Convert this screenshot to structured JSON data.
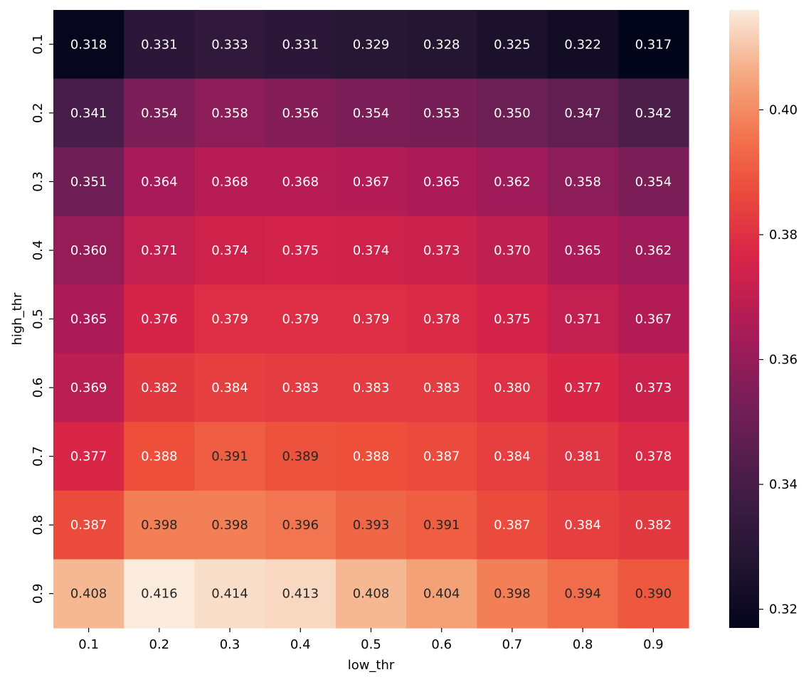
{
  "chart_data": {
    "type": "heatmap",
    "title": "",
    "xlabel": "low_thr",
    "ylabel": "high_thr",
    "x_categories": [
      "0.1",
      "0.2",
      "0.3",
      "0.4",
      "0.5",
      "0.6",
      "0.7",
      "0.8",
      "0.9"
    ],
    "y_categories": [
      "0.1",
      "0.2",
      "0.3",
      "0.4",
      "0.5",
      "0.6",
      "0.7",
      "0.8",
      "0.9"
    ],
    "values": [
      [
        0.318,
        0.331,
        0.333,
        0.331,
        0.329,
        0.328,
        0.325,
        0.322,
        0.317
      ],
      [
        0.341,
        0.354,
        0.358,
        0.356,
        0.354,
        0.353,
        0.35,
        0.347,
        0.342
      ],
      [
        0.351,
        0.364,
        0.368,
        0.368,
        0.367,
        0.365,
        0.362,
        0.358,
        0.354
      ],
      [
        0.36,
        0.371,
        0.374,
        0.375,
        0.374,
        0.373,
        0.37,
        0.365,
        0.362
      ],
      [
        0.365,
        0.376,
        0.379,
        0.379,
        0.379,
        0.378,
        0.375,
        0.371,
        0.367
      ],
      [
        0.369,
        0.382,
        0.384,
        0.383,
        0.383,
        0.383,
        0.38,
        0.377,
        0.373
      ],
      [
        0.377,
        0.388,
        0.391,
        0.389,
        0.388,
        0.387,
        0.384,
        0.381,
        0.378
      ],
      [
        0.387,
        0.398,
        0.398,
        0.396,
        0.393,
        0.391,
        0.387,
        0.384,
        0.382
      ],
      [
        0.408,
        0.416,
        0.414,
        0.413,
        0.408,
        0.404,
        0.398,
        0.394,
        0.39
      ]
    ],
    "annotations": [
      [
        "0.318",
        "0.331",
        "0.333",
        "0.331",
        "0.329",
        "0.328",
        "0.325",
        "0.322",
        "0.317"
      ],
      [
        "0.341",
        "0.354",
        "0.358",
        "0.356",
        "0.354",
        "0.353",
        "0.350",
        "0.347",
        "0.342"
      ],
      [
        "0.351",
        "0.364",
        "0.368",
        "0.368",
        "0.367",
        "0.365",
        "0.362",
        "0.358",
        "0.354"
      ],
      [
        "0.360",
        "0.371",
        "0.374",
        "0.375",
        "0.374",
        "0.373",
        "0.370",
        "0.365",
        "0.362"
      ],
      [
        "0.365",
        "0.376",
        "0.379",
        "0.379",
        "0.379",
        "0.378",
        "0.375",
        "0.371",
        "0.367"
      ],
      [
        "0.369",
        "0.382",
        "0.384",
        "0.383",
        "0.383",
        "0.383",
        "0.380",
        "0.377",
        "0.373"
      ],
      [
        "0.377",
        "0.388",
        "0.391",
        "0.389",
        "0.388",
        "0.387",
        "0.384",
        "0.381",
        "0.378"
      ],
      [
        "0.387",
        "0.398",
        "0.398",
        "0.396",
        "0.393",
        "0.391",
        "0.387",
        "0.384",
        "0.382"
      ],
      [
        "0.408",
        "0.416",
        "0.414",
        "0.413",
        "0.408",
        "0.404",
        "0.398",
        "0.394",
        "0.390"
      ]
    ],
    "colorbar": {
      "colormap": "rocket",
      "vmin": 0.317,
      "vmax": 0.416,
      "ticks": [
        0.32,
        0.34,
        0.36,
        0.38,
        0.4
      ],
      "tick_labels": [
        "0.32",
        "0.34",
        "0.36",
        "0.38",
        "0.40"
      ]
    },
    "grid": false,
    "legend": "colorbar-right"
  }
}
